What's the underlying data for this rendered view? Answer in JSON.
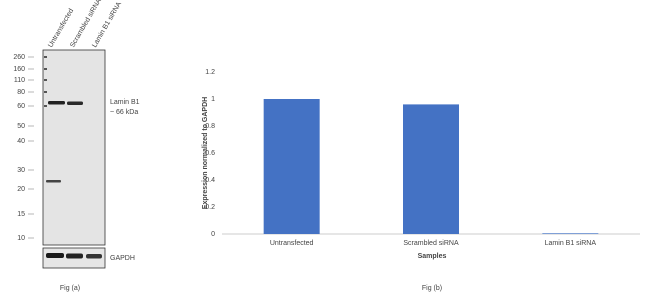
{
  "western_blot": {
    "lanes": [
      "Untransfected",
      "Scrambled siRNA",
      "Lamin B1 siRNA"
    ],
    "markers": [
      "260",
      "160",
      "110",
      "80",
      "60",
      "50",
      "40",
      "30",
      "20",
      "15",
      "10"
    ],
    "target_label": "Lamin B1",
    "target_size": "~ 66 kDa",
    "control_label": "GAPDH",
    "caption": "Fig (a)"
  },
  "chart_data": {
    "type": "bar",
    "categories": [
      "Untransfected",
      "Scrambled siRNA",
      "Lamin B1 siRNA"
    ],
    "values": [
      1,
      0.96,
      0.005
    ],
    "color": "#4472c4",
    "ylim": [
      0,
      1.2
    ],
    "yticks": [
      0,
      0.2,
      0.4,
      0.6,
      0.8,
      1,
      1.2
    ],
    "ylabel": "Expression  normalized to GAPDH",
    "xlabel": "Samples",
    "caption": "Fig (b)"
  }
}
